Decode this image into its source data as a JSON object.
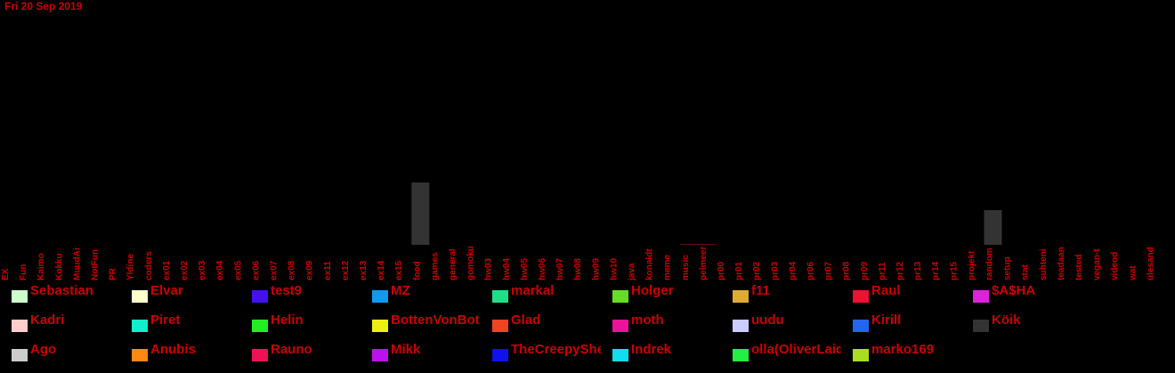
{
  "date_label": "Fri 20 Sep 2019",
  "chart_data": {
    "type": "bar",
    "title": "",
    "xlabel": "",
    "ylabel": "",
    "grid": false,
    "legend_position": "bottom",
    "categories": [
      "EX",
      "Fun",
      "Kaimo",
      "Kokku",
      "MuudAi",
      "NotFun",
      "PR",
      "Yldine",
      "coders",
      "ex01",
      "ex02",
      "ex03",
      "ex04",
      "ex05",
      "ex06",
      "ex07",
      "ex08",
      "ex09",
      "ex11",
      "ex12",
      "ex13",
      "ex14",
      "ex15",
      "food",
      "games",
      "general",
      "gomoku",
      "hw03",
      "hw04",
      "hw05",
      "hw06",
      "hw07",
      "hw08",
      "hw09",
      "hw10",
      "java",
      "konaldt",
      "meme",
      "music",
      "pelmeer",
      "pr00",
      "pr01",
      "pr02",
      "pr03",
      "pr04",
      "pr06",
      "pr07",
      "pr08",
      "pr09",
      "pr11",
      "pr12",
      "pr13",
      "pr14",
      "pr15",
      "projekt",
      "random",
      "setup",
      "stat",
      "suhteni",
      "teadaan",
      "tested",
      "vegan-t",
      "videod",
      "wat",
      "ülesand"
    ],
    "values": [
      0,
      0,
      0,
      0,
      0,
      0,
      0,
      0,
      0,
      0,
      0,
      0,
      0,
      0,
      0,
      0,
      0,
      0,
      0,
      0,
      0,
      0,
      0,
      70,
      0,
      0,
      0,
      0,
      0,
      0,
      0,
      0,
      0,
      0,
      0,
      0,
      0,
      0,
      1,
      1,
      0,
      0,
      0,
      0,
      0,
      0,
      0,
      0,
      0,
      0,
      0,
      0,
      0,
      0,
      0,
      39,
      0,
      0,
      0,
      0,
      0,
      0,
      0,
      0,
      0
    ],
    "ylim": [
      0,
      70
    ],
    "bar_color": "#333333",
    "legend": [
      {
        "name": "Sebastian",
        "color": "#ccffcc"
      },
      {
        "name": "Elvar",
        "color": "#ffffcc"
      },
      {
        "name": "test9",
        "color": "#4411ee"
      },
      {
        "name": "MZ",
        "color": "#1199ee"
      },
      {
        "name": "markal",
        "color": "#22dd88"
      },
      {
        "name": "Holger",
        "color": "#66dd22"
      },
      {
        "name": "f11",
        "color": "#ddaa33"
      },
      {
        "name": "Raul",
        "color": "#ee1133"
      },
      {
        "name": "$A$HA",
        "color": "#dd22dd"
      },
      {
        "name": "Kadri",
        "color": "#ffcccc"
      },
      {
        "name": "Piret",
        "color": "#11eecc"
      },
      {
        "name": "Helin",
        "color": "#22ee22"
      },
      {
        "name": "BottenVonBot",
        "color": "#eeee11"
      },
      {
        "name": "Glad",
        "color": "#ee4422"
      },
      {
        "name": "moth",
        "color": "#ee1199"
      },
      {
        "name": "uudu",
        "color": "#ccccff"
      },
      {
        "name": "Kirill",
        "color": "#2266ee"
      },
      {
        "name": "Köik",
        "color": "#333333"
      },
      {
        "name": "Ago",
        "color": "#cccccc"
      },
      {
        "name": "Anubis",
        "color": "#ff8811"
      },
      {
        "name": "Rauno",
        "color": "#ee1155"
      },
      {
        "name": "Mikk",
        "color": "#bb11ee"
      },
      {
        "name": "TheCreepySheep",
        "color": "#1111ee"
      },
      {
        "name": "Indrek",
        "color": "#11ddee"
      },
      {
        "name": "olla(OliverLaidla)",
        "color": "#22ee44"
      },
      {
        "name": "marko169",
        "color": "#aadd22"
      }
    ]
  }
}
